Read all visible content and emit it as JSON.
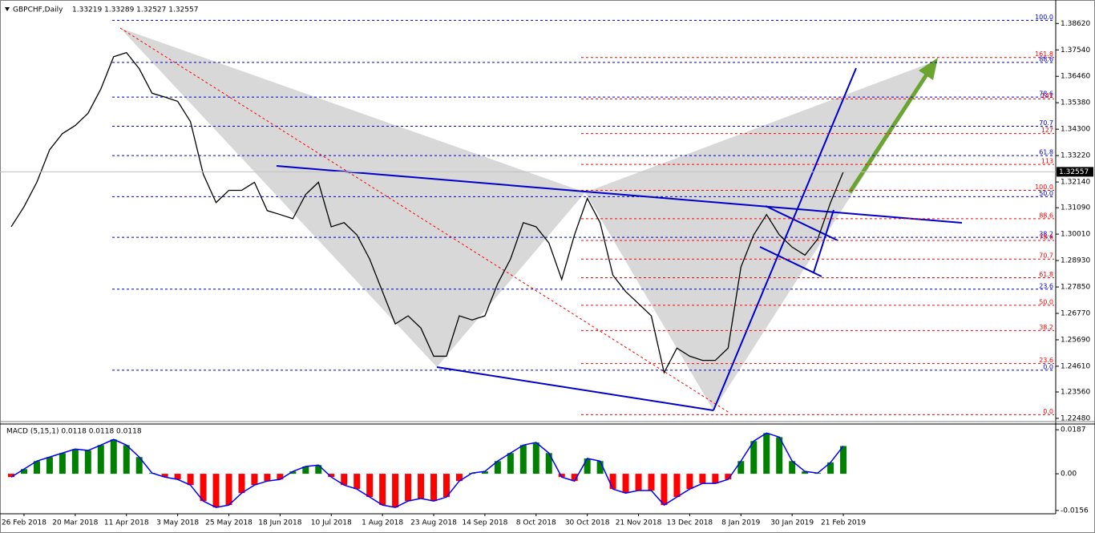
{
  "chart_data": [
    {
      "type": "line",
      "title": "GBPCHF,Daily",
      "subtitle": "1.33219 1.33289 1.32527 1.32557",
      "color": "#000000",
      "values": [
        1.3031,
        1.3113,
        1.3213,
        1.3346,
        1.3412,
        1.3445,
        1.3495,
        1.3594,
        1.3726,
        1.3743,
        1.3677,
        1.3577,
        1.3561,
        1.3544,
        1.3461,
        1.3246,
        1.313,
        1.318,
        1.318,
        1.3213,
        1.3097,
        1.3081,
        1.3064,
        1.3163,
        1.3213,
        1.3031,
        1.3048,
        1.2998,
        1.2899,
        1.2766,
        1.2634,
        1.2667,
        1.2617,
        1.2502,
        1.2502,
        1.2667,
        1.265,
        1.2667,
        1.2799,
        1.2899,
        1.3048,
        1.3031,
        1.2965,
        1.2816,
        1.2998,
        1.3147,
        1.3048,
        1.2833,
        1.2766,
        1.2717,
        1.2667,
        1.2435,
        1.2535,
        1.2502,
        1.2485,
        1.2485,
        1.2535,
        1.2866,
        1.2998,
        1.3081,
        1.2998,
        1.2948,
        1.2915,
        1.2981,
        1.313,
        1.3256
      ],
      "last_price": 1.32557,
      "ylim": [
        1.2238,
        1.3958
      ],
      "yticks": [
        {
          "value": 1.3862,
          "label": "1.38620"
        },
        {
          "value": 1.3754,
          "label": "1.37540"
        },
        {
          "value": 1.3646,
          "label": "1.36460"
        },
        {
          "value": 1.3538,
          "label": "1.35380"
        },
        {
          "value": 1.343,
          "label": "1.34300"
        },
        {
          "value": 1.3322,
          "label": "1.33220"
        },
        {
          "value": 1.3214,
          "label": "1.32140"
        },
        {
          "value": 1.3109,
          "label": "1.31090"
        },
        {
          "value": 1.3001,
          "label": "1.30010"
        },
        {
          "value": 1.2893,
          "label": "1.28930"
        },
        {
          "value": 1.2785,
          "label": "1.27850"
        },
        {
          "value": 1.2677,
          "label": "1.26770"
        },
        {
          "value": 1.2569,
          "label": "1.25690"
        },
        {
          "value": 1.2461,
          "label": "1.24610"
        },
        {
          "value": 1.2356,
          "label": "1.23560"
        },
        {
          "value": 1.2248,
          "label": "1.22480"
        }
      ],
      "fib_levels": [
        {
          "label": "100.0",
          "value": 1.3875,
          "color": "#0000cc"
        },
        {
          "label": "88.6",
          "value": 1.3703,
          "color": "#0000cc"
        },
        {
          "label": "78.6",
          "value": 1.3561,
          "color": "#0000cc"
        },
        {
          "label": "70.7",
          "value": 1.3442,
          "color": "#0000cc"
        },
        {
          "label": "61.8",
          "value": 1.3322,
          "color": "#0000cc"
        },
        {
          "label": "50.0",
          "value": 1.3154,
          "color": "#0000cc"
        },
        {
          "label": "38.2",
          "value": 1.2988,
          "color": "#0000cc"
        },
        {
          "label": "23.6",
          "value": 1.2776,
          "color": "#0000cc"
        },
        {
          "label": "0.0",
          "value": 1.2445,
          "color": "#0000cc"
        },
        {
          "label": "161.8",
          "value": 1.3723,
          "color": "#ff0000"
        },
        {
          "label": "141",
          "value": 1.3554,
          "color": "#ff0000"
        },
        {
          "label": "127",
          "value": 1.3412,
          "color": "#ff0000"
        },
        {
          "label": "113",
          "value": 1.3286,
          "color": "#ff0000"
        },
        {
          "label": "100.0",
          "value": 1.318,
          "color": "#ff0000"
        },
        {
          "label": "88.6",
          "value": 1.3064,
          "color": "#ff0000"
        },
        {
          "label": "78.6",
          "value": 1.2975,
          "color": "#ff0000"
        },
        {
          "label": "70.7",
          "value": 1.2899,
          "color": "#ff0000"
        },
        {
          "label": "61.8",
          "value": 1.2823,
          "color": "#ff0000"
        },
        {
          "label": "50.0",
          "value": 1.271,
          "color": "#ff0000"
        },
        {
          "label": "38.2",
          "value": 1.2607,
          "color": "#ff0000"
        },
        {
          "label": "23.6",
          "value": 1.2472,
          "color": "#ff0000"
        },
        {
          "label": "0.0",
          "value": 1.2263,
          "color": "#ff0000"
        }
      ]
    },
    {
      "type": "bar",
      "title": "MACD (5,15,1) 0.0118 0.0118 0.0118",
      "color_up": "#008000",
      "color_down": "#ff0000",
      "line_color": "#0000ff",
      "categories": [
        null,
        "26 Feb 2018",
        null,
        null,
        null,
        "20 Mar 2018",
        null,
        null,
        null,
        "11 Apr 2018",
        null,
        null,
        null,
        "3 May 2018",
        null,
        null,
        null,
        "25 May 2018",
        null,
        null,
        null,
        "18 Jun 2018",
        null,
        null,
        null,
        "10 Jul 2018",
        null,
        null,
        null,
        "1 Aug 2018",
        null,
        null,
        null,
        "23 Aug 2018",
        null,
        null,
        null,
        "14 Sep 2018",
        null,
        null,
        null,
        "8 Oct 2018",
        null,
        null,
        null,
        "30 Oct 2018",
        null,
        null,
        null,
        "21 Nov 2018",
        null,
        null,
        null,
        "13 Dec 2018",
        null,
        null,
        null,
        "8 Jan 2019",
        null,
        null,
        null,
        "30 Jan 2019",
        null,
        null,
        null,
        "21 Feb 2019"
      ],
      "values": [
        -0.0014,
        0.002,
        0.0054,
        0.0071,
        0.0088,
        0.0105,
        0.0099,
        0.0122,
        0.0146,
        0.0122,
        0.0071,
        0.0003,
        -0.0014,
        -0.0024,
        -0.0048,
        -0.0116,
        -0.0143,
        -0.0133,
        -0.0082,
        -0.0048,
        -0.0031,
        -0.0024,
        0.001,
        0.0031,
        0.0037,
        -0.0014,
        -0.0048,
        -0.0065,
        -0.0099,
        -0.0133,
        -0.0143,
        -0.0116,
        -0.0105,
        -0.0116,
        -0.0099,
        -0.0031,
        0.0003,
        0.001,
        0.0054,
        0.0088,
        0.0122,
        0.0133,
        0.0088,
        -0.0014,
        -0.0031,
        0.0065,
        0.0054,
        -0.0065,
        -0.0082,
        -0.0071,
        -0.0071,
        -0.0133,
        -0.0099,
        -0.0065,
        -0.0041,
        -0.0041,
        -0.0024,
        0.0054,
        0.0139,
        0.0173,
        0.0156,
        0.0054,
        0.001,
        0.0003,
        0.0048,
        0.0118
      ],
      "ylim": [
        -0.017,
        0.0215
      ],
      "yticks": [
        0.0187,
        {
          "value": 0,
          "label": "0.00"
        },
        -0.0156
      ]
    }
  ]
}
